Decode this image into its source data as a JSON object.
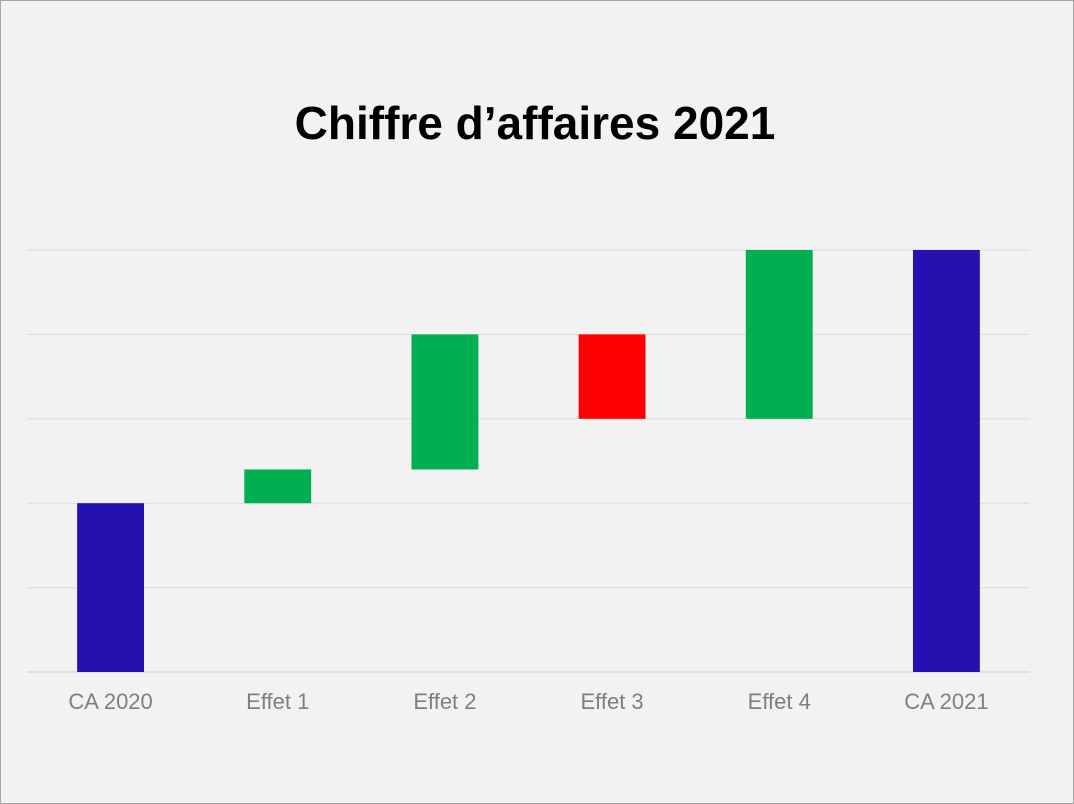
{
  "chart_data": {
    "type": "waterfall",
    "title": "Chiffre d’affaires 2021",
    "categories": [
      "CA 2020",
      "Effet 1",
      "Effet 2",
      "Effet 3",
      "Effet 4",
      "CA 2021"
    ],
    "values": [
      2,
      0.4,
      1.6,
      -1,
      2,
      5
    ],
    "is_total": [
      true,
      false,
      false,
      false,
      false,
      true
    ],
    "colors": [
      "#2510b0",
      "#00b050",
      "#00b050",
      "#ff0000",
      "#00b050",
      "#2510b0"
    ],
    "ylim": [
      0,
      5
    ],
    "gridlines": [
      0,
      1,
      2,
      3,
      4,
      5
    ]
  }
}
